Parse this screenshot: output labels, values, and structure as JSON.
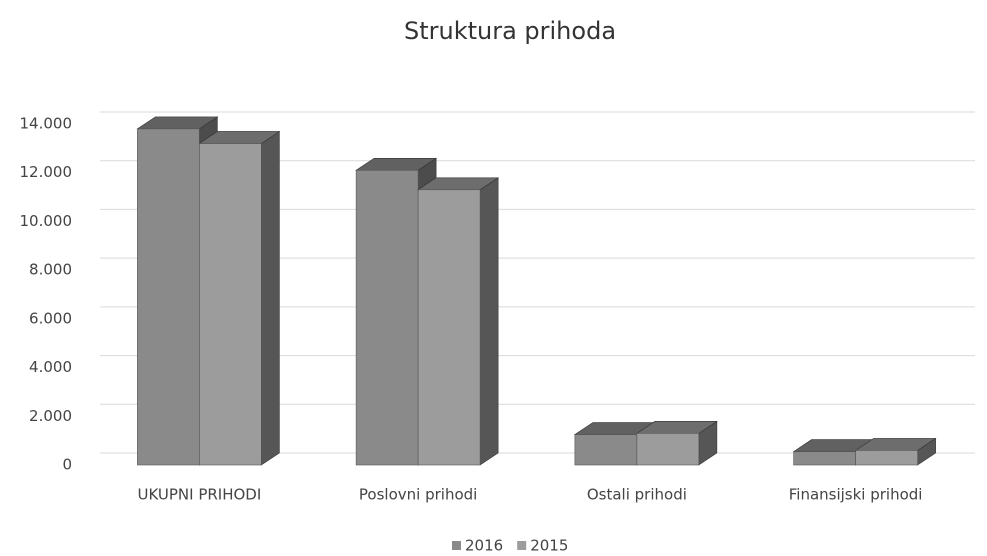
{
  "chart_data": {
    "type": "bar3d",
    "title": "Struktura prihoda",
    "categories": [
      "UKUPNI PRIHODI",
      "Poslovni prihodi",
      "Ostali prihodi",
      "Finansijski prihodi"
    ],
    "series": [
      {
        "name": "2016",
        "color": "#8a8a8a",
        "values": [
          13800,
          12100,
          1250,
          550
        ]
      },
      {
        "name": "2015",
        "color": "#9c9c9c",
        "values": [
          13200,
          11300,
          1300,
          600
        ]
      }
    ],
    "ylim": [
      0,
      14000
    ],
    "yticks": [
      0,
      {
        "value": 2000,
        "label": "2.000"
      },
      {
        "value": 4000,
        "label": "4.000"
      },
      {
        "value": 6000,
        "label": "6.000"
      },
      {
        "value": 8000,
        "label": "8.000"
      },
      {
        "value": 10000,
        "label": "10.000"
      },
      {
        "value": 12000,
        "label": "12.000"
      },
      {
        "value": 14000,
        "label": "14.000"
      }
    ],
    "grid": true,
    "legend": "bottom"
  }
}
